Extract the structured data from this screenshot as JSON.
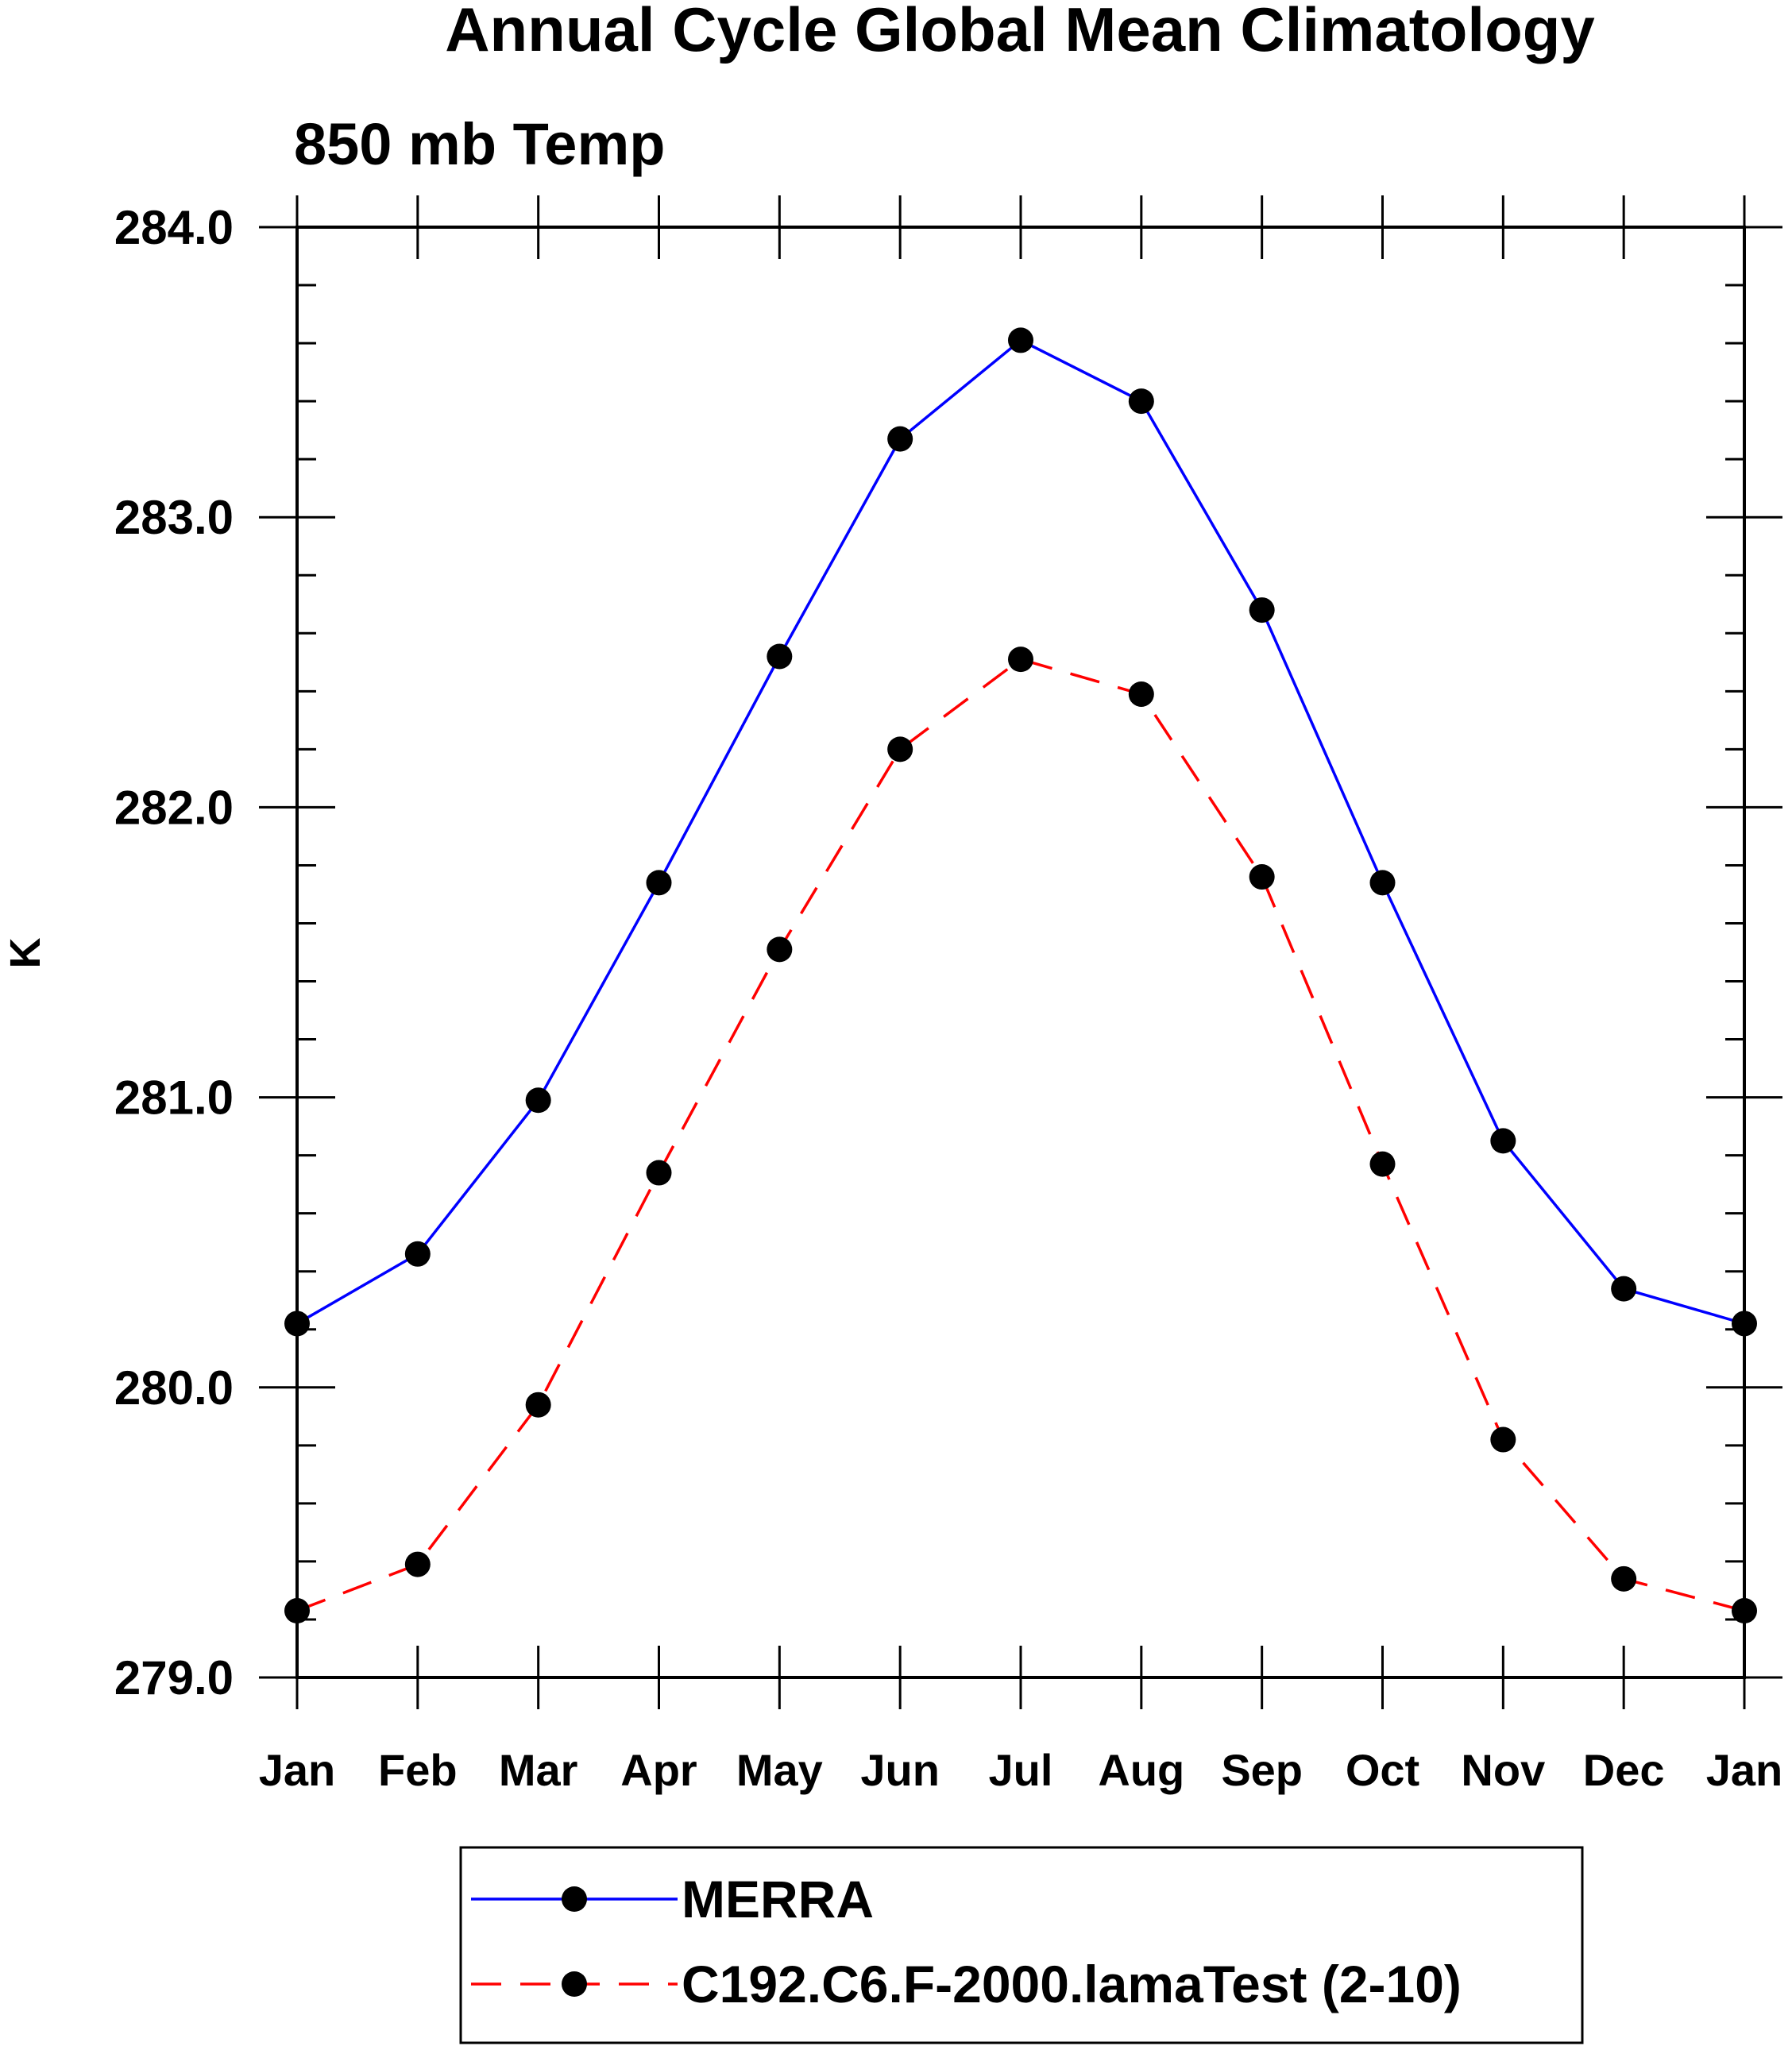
{
  "colors": {
    "merra": "#0000ff",
    "model": "#ff0000",
    "markers": "#000000",
    "axes": "#000000"
  },
  "chart_data": {
    "type": "line",
    "title": "Annual Cycle Global Mean Climatology",
    "subtitle": "850 mb Temp",
    "xlabel": "",
    "ylabel": "K",
    "categories": [
      "Jan",
      "Feb",
      "Mar",
      "Apr",
      "May",
      "Jun",
      "Jul",
      "Aug",
      "Sep",
      "Oct",
      "Nov",
      "Dec",
      "Jan"
    ],
    "ylim": [
      279.0,
      284.0
    ],
    "yticks": [
      "279.0",
      "280.0",
      "281.0",
      "282.0",
      "283.0",
      "284.0"
    ],
    "grid": false,
    "legend_position": "bottom",
    "series": [
      {
        "name": "MERRA",
        "line_style": "solid",
        "marker": "filled-circle",
        "values": [
          280.22,
          280.46,
          280.99,
          281.74,
          282.52,
          283.27,
          283.61,
          283.4,
          282.68,
          281.74,
          280.85,
          280.34,
          280.22
        ]
      },
      {
        "name": "C192.C6.F-2000.lamaTest (2-10)",
        "line_style": "dashed",
        "marker": "filled-circle",
        "values": [
          279.23,
          279.39,
          279.94,
          280.74,
          281.51,
          282.2,
          282.51,
          282.39,
          281.76,
          280.77,
          279.82,
          279.34,
          279.23
        ]
      }
    ]
  }
}
